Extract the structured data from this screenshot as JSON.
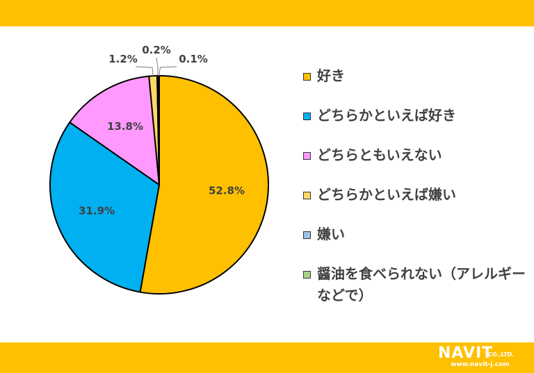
{
  "chart_data": {
    "type": "pie",
    "start_angle_deg": 0,
    "direction": "clockwise",
    "slices": [
      {
        "label": "好き",
        "value": 52.8,
        "value_label": "52.8%",
        "color": "#FFC000"
      },
      {
        "label": "どちらかといえば好き",
        "value": 31.9,
        "value_label": "31.9%",
        "color": "#00B0F0"
      },
      {
        "label": "どちらともいえない",
        "value": 13.8,
        "value_label": "13.8%",
        "color": "#FF99FF"
      },
      {
        "label": "どちらかといえば嫌い",
        "value": 1.2,
        "value_label": "1.2%",
        "color": "#FFD966"
      },
      {
        "label": "嫌い",
        "value": 0.2,
        "value_label": "0.2%",
        "color": "#9DC3E6"
      },
      {
        "label": "醤油を食べられない（アレルギーなどで）",
        "value": 0.1,
        "value_label": "0.1%",
        "color": "#A9D18E"
      }
    ],
    "legend_position": "right"
  },
  "brand": {
    "logo_text": "NAVIT",
    "logo_suffix": "CO.,LTD.",
    "url": "www.navit-j.com"
  },
  "colors": {
    "band": "#FFC000",
    "slice_border": "#000000",
    "label_text": "#404040"
  }
}
